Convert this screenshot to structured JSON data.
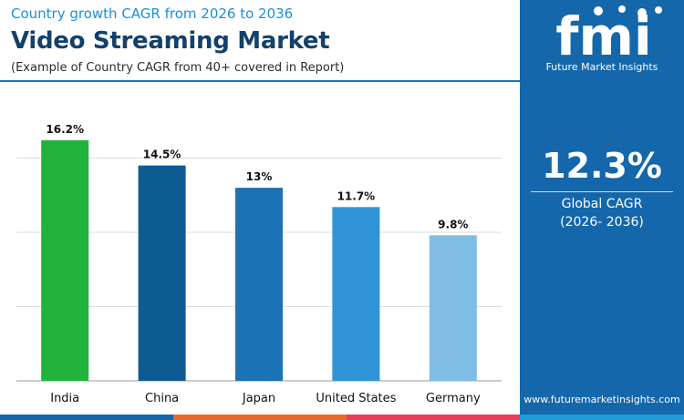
{
  "header": {
    "subtitle": "Country growth CAGR from 2026 to 2036",
    "title": "Video Streaming Market",
    "note": "(Example of Country CAGR from 40+ covered in Report)"
  },
  "brand": {
    "logo_text": "fmi",
    "name": "Future Market Insights",
    "website": "www.futuremarketinsights.com"
  },
  "kpi": {
    "value": "12.3%",
    "label": "Global CAGR",
    "period": "(2026- 2036)"
  },
  "colors": {
    "panel": "#1467ab",
    "subtitle": "#1a8fd9",
    "title": "#14406b",
    "bars": [
      "#21b33b",
      "#0e5b94",
      "#1b73b5",
      "#3093d6",
      "#80bde4"
    ]
  },
  "chart_data": {
    "type": "bar",
    "categories": [
      "India",
      "China",
      "Japan",
      "United States",
      "Germany"
    ],
    "values": [
      16.2,
      14.5,
      13,
      11.7,
      9.8
    ],
    "value_labels": [
      "16.2%",
      "14.5%",
      "13%",
      "11.7%",
      "9.8%"
    ],
    "ylim": [
      0,
      20
    ],
    "grid": true,
    "legend": "none"
  }
}
